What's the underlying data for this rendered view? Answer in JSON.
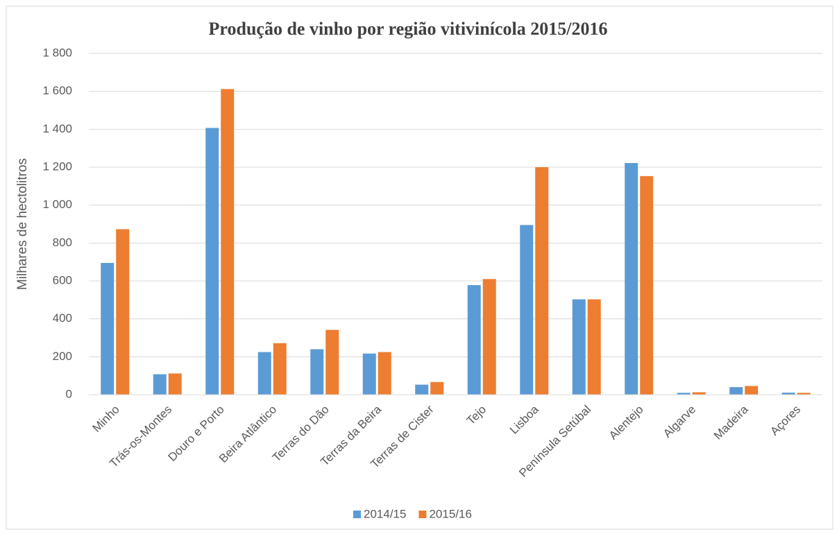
{
  "chart_data": {
    "type": "bar",
    "title": "Produção de vinho por região vitivinícola 2015/2016",
    "y_label": "Milhares de hectolitros",
    "categories": [
      "Minho",
      "Trás-os-Montes",
      "Douro e Porto",
      "Beira Atlântico",
      "Terras do Dão",
      "Terras da Beira",
      "Terras de Cister",
      "Tejo",
      "Lisboa",
      "Península Setúbal",
      "Alentejo",
      "Algarve",
      "Madeira",
      "Açores"
    ],
    "series": [
      {
        "name": "2014/15",
        "color": "#5b9bd5",
        "values": [
          695,
          108,
          1407,
          225,
          240,
          217,
          53,
          578,
          895,
          503,
          1222,
          10,
          40,
          11
        ]
      },
      {
        "name": "2015/16",
        "color": "#ed7d31",
        "values": [
          873,
          112,
          1612,
          272,
          342,
          225,
          67,
          610,
          1200,
          503,
          1153,
          13,
          46,
          10
        ]
      }
    ],
    "ylim": [
      0,
      1800
    ],
    "yticks": [
      0,
      200,
      400,
      600,
      800,
      {
        "value": 1000,
        "label": "1 000"
      },
      {
        "value": 1200,
        "label": "1 200"
      },
      {
        "value": 1400,
        "label": "1 400"
      },
      {
        "value": 1600,
        "label": "1 600"
      },
      {
        "value": 1800,
        "label": "1 800"
      }
    ],
    "grid": true,
    "legend": "bottom"
  }
}
